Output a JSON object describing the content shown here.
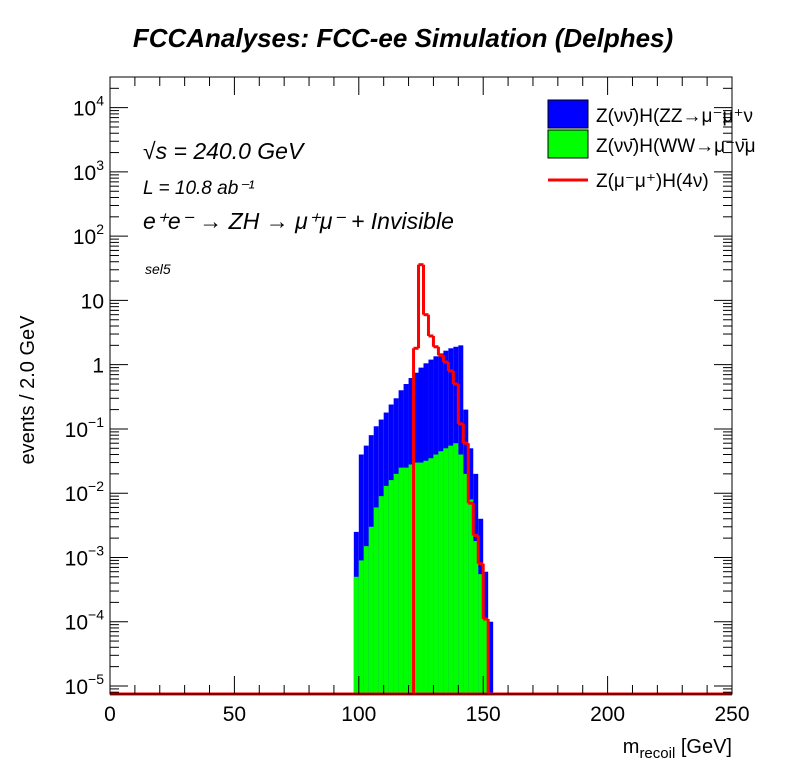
{
  "chart_data": {
    "type": "histogram",
    "title": "FCCAnalyses: FCC-ee Simulation (Delphes)",
    "xlabel": {
      "main": "m",
      "sub": "recoil",
      "unit": " [GeV]"
    },
    "ylabel": "events / 2.0 GeV",
    "xlim": [
      0,
      250
    ],
    "ylim": [
      7.5e-06,
      30000
    ],
    "yscale": "log",
    "bin_width": 2,
    "x_ticks": [
      "0",
      "50",
      "100",
      "150",
      "200",
      "250"
    ],
    "y_ticks": [
      {
        "value": 1e-05,
        "base": "10",
        "exp": "−5"
      },
      {
        "value": 0.0001,
        "base": "10",
        "exp": "−4"
      },
      {
        "value": 0.001,
        "base": "10",
        "exp": "−3"
      },
      {
        "value": 0.01,
        "base": "10",
        "exp": "−2"
      },
      {
        "value": 0.1,
        "base": "10",
        "exp": "−1"
      },
      {
        "value": 1,
        "base": "1",
        "exp": ""
      },
      {
        "value": 10,
        "base": "10",
        "exp": ""
      },
      {
        "value": 100,
        "base": "10",
        "exp": "2"
      },
      {
        "value": 1000,
        "base": "10",
        "exp": "3"
      },
      {
        "value": 10000,
        "base": "10",
        "exp": "4"
      }
    ],
    "annotations": {
      "sqrt_s": "√s = 240.0 GeV",
      "lumi": "L = 10.8 ab⁻¹",
      "process": "e⁺e⁻ → ZH → μ⁺μ⁻ + Invisible",
      "selection": "sel5"
    },
    "legend_position": "top-right",
    "series": [
      {
        "name": "Z(νν̄)H(ZZ→μ⁻μ⁺ν",
        "style": "filled",
        "color": "#0000ff",
        "bin_start": 98,
        "values": [
          0.0025,
          0.04,
          0.055,
          0.08,
          0.11,
          0.14,
          0.18,
          0.24,
          0.3,
          0.4,
          0.5,
          0.62,
          0.75,
          0.9,
          1.05,
          1.2,
          1.35,
          1.5,
          1.65,
          1.8,
          1.9,
          2.0,
          0.2,
          0.05,
          0.02,
          0.004,
          0.0006,
          0.0001
        ]
      },
      {
        "name": "Z(νν̄)H(WW→μ⁻ν̄μ",
        "style": "filled",
        "color": "#00ff00",
        "bin_start": 98,
        "values": [
          0.0005,
          0.0009,
          0.0015,
          0.003,
          0.006,
          0.009,
          0.013,
          0.016,
          0.02,
          0.025,
          0.025,
          0.028,
          0.03,
          0.03,
          0.032,
          0.035,
          0.04,
          0.045,
          0.05,
          0.055,
          0.06,
          0.04,
          0.02,
          0.008,
          0.0018,
          0.00055,
          0.00011,
          0
        ]
      },
      {
        "name": "Z(μ⁻μ⁺)H(4ν)",
        "style": "line",
        "color": "#ff0000",
        "bin_start": 122,
        "values": [
          1.8,
          36,
          6,
          2.8,
          1.9,
          1.4,
          1.1,
          0.8,
          0.5,
          0.12,
          0.06,
          0.007,
          0.0022,
          0.0008,
          0.00011
        ]
      }
    ]
  }
}
